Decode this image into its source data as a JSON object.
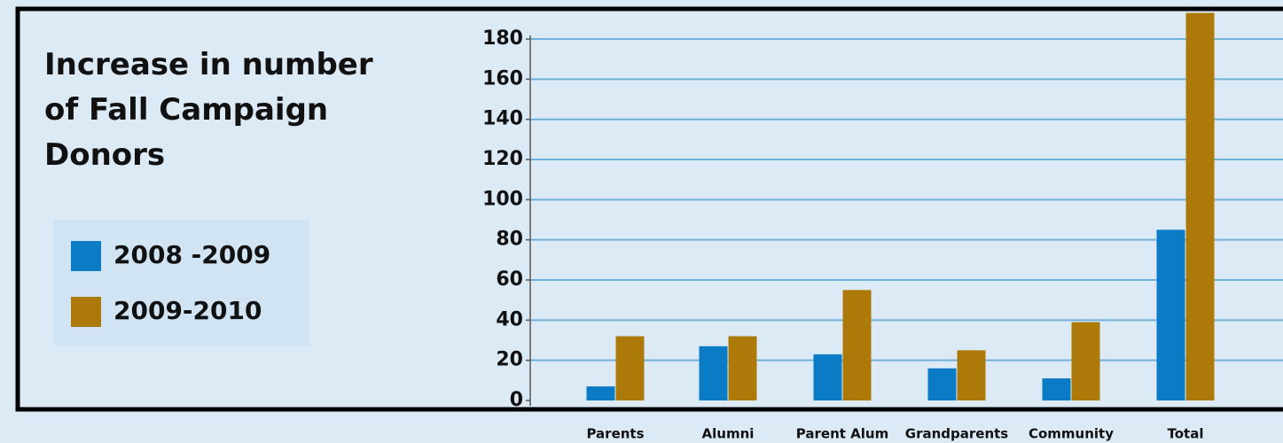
{
  "chart_data": {
    "type": "bar",
    "title": "Increase in number of Fall Campaign Donors",
    "categories": [
      "Parents",
      "Alumni",
      "Parent Alum",
      "Grandparents",
      "Community",
      "Total"
    ],
    "series": [
      {
        "name": "2008 -2009",
        "color": "#0a7bc4",
        "values": [
          7,
          27,
          23,
          16,
          11,
          85
        ]
      },
      {
        "name": "2009-2010",
        "color": "#ad7a0a",
        "values": [
          32,
          32,
          55,
          25,
          39,
          193
        ]
      }
    ],
    "ylim": [
      0,
      194
    ],
    "yticks": [
      0,
      20,
      40,
      60,
      80,
      100,
      120,
      140,
      160,
      180
    ],
    "grid": true
  }
}
